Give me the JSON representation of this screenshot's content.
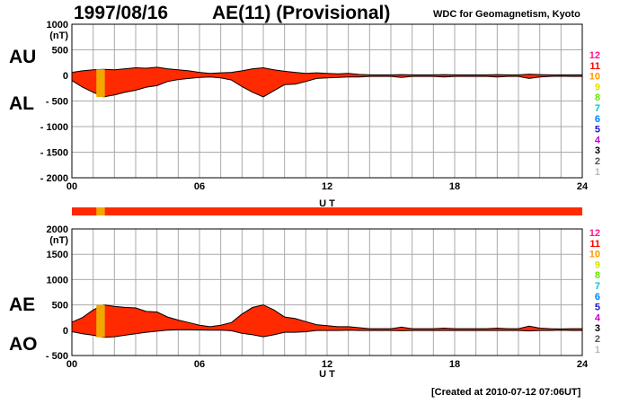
{
  "header": {
    "date": "1997/08/16",
    "title": "AE(11) (Provisional)",
    "organization": "WDC for Geomagnetism, Kyoto"
  },
  "footer": {
    "created": "[Created at 2010-07-12 07:06UT]"
  },
  "colors": {
    "trace_fill": "#ff2a00",
    "highlight_fill": "#f2a600",
    "outline": "#000000",
    "grid": "#aaaaaa"
  },
  "level_scale": {
    "labels": [
      "12",
      "11",
      "10",
      "9",
      "8",
      "7",
      "6",
      "5",
      "4",
      "3",
      "2",
      "1"
    ],
    "colors": [
      "#ff1493",
      "#ff0000",
      "#ff9900",
      "#d6e600",
      "#66e600",
      "#00c8c8",
      "#0080ff",
      "#1a1acc",
      "#cc00cc",
      "#000000",
      "#555555",
      "#bbbbbb"
    ]
  },
  "chart_data": [
    {
      "type": "area",
      "panel": "AU/AL",
      "series_labels": [
        "AU",
        "AL"
      ],
      "ylabel": "(nT)",
      "xlabel": "U T",
      "xlim": [
        0,
        24
      ],
      "ylim": [
        -2000,
        1000
      ],
      "xticks": [
        "00",
        "06",
        "12",
        "18",
        "24"
      ],
      "yticks": [
        "1000",
        "500",
        "0",
        "- 500",
        "- 1000",
        "- 1500",
        "- 2000"
      ],
      "ytick_values": [
        1000,
        500,
        0,
        -500,
        -1000,
        -1500,
        -2000
      ],
      "grid": true,
      "highlight_hours": [
        [
          1.15,
          1.55
        ]
      ],
      "x": [
        0,
        0.5,
        1,
        1.5,
        2,
        2.5,
        3,
        3.5,
        4,
        4.5,
        5,
        5.5,
        6,
        6.5,
        7,
        7.5,
        8,
        8.5,
        9,
        9.5,
        10,
        10.5,
        11,
        11.5,
        12,
        12.5,
        13,
        13.5,
        14,
        14.5,
        15,
        15.5,
        16,
        16.5,
        17,
        17.5,
        18,
        18.5,
        19,
        19.5,
        20,
        20.5,
        21,
        21.5,
        22,
        22.5,
        23,
        23.5,
        24
      ],
      "upper": [
        60,
        90,
        110,
        120,
        110,
        130,
        150,
        140,
        160,
        130,
        110,
        90,
        60,
        40,
        50,
        60,
        90,
        130,
        150,
        110,
        80,
        60,
        40,
        50,
        40,
        30,
        40,
        20,
        10,
        10,
        10,
        15,
        10,
        10,
        10,
        15,
        10,
        10,
        10,
        10,
        15,
        10,
        10,
        25,
        15,
        10,
        10,
        10,
        10
      ],
      "lower": [
        -100,
        -230,
        -330,
        -420,
        -380,
        -330,
        -290,
        -230,
        -200,
        -120,
        -80,
        -60,
        -40,
        -30,
        -50,
        -90,
        -220,
        -330,
        -420,
        -300,
        -180,
        -170,
        -120,
        -60,
        -50,
        -40,
        -30,
        -30,
        -20,
        -20,
        -20,
        -40,
        -20,
        -20,
        -20,
        -30,
        -20,
        -20,
        -20,
        -20,
        -30,
        -20,
        -20,
        -60,
        -30,
        -20,
        -15,
        -20,
        -20
      ]
    },
    {
      "type": "area",
      "panel": "AE/AO",
      "series_labels": [
        "AE",
        "AO"
      ],
      "ylabel": "(nT)",
      "xlabel": "U T",
      "xlim": [
        0,
        24
      ],
      "ylim": [
        -500,
        2000
      ],
      "xticks": [
        "00",
        "06",
        "12",
        "18",
        "24"
      ],
      "yticks": [
        "2000",
        "1500",
        "1000",
        "500",
        "0",
        "- 500"
      ],
      "ytick_values": [
        2000,
        1500,
        1000,
        500,
        0,
        -500
      ],
      "grid": true,
      "highlight_hours": [
        [
          1.15,
          1.55
        ]
      ],
      "x": [
        0,
        0.5,
        1,
        1.5,
        2,
        2.5,
        3,
        3.5,
        4,
        4.5,
        5,
        5.5,
        6,
        6.5,
        7,
        7.5,
        8,
        8.5,
        9,
        9.5,
        10,
        10.5,
        11,
        11.5,
        12,
        12.5,
        13,
        13.5,
        14,
        14.5,
        15,
        15.5,
        16,
        16.5,
        17,
        17.5,
        18,
        18.5,
        19,
        19.5,
        20,
        20.5,
        21,
        21.5,
        22,
        22.5,
        23,
        23.5,
        24
      ],
      "upper": [
        160,
        250,
        400,
        500,
        470,
        450,
        440,
        370,
        360,
        260,
        200,
        150,
        100,
        70,
        100,
        150,
        320,
        450,
        500,
        400,
        260,
        230,
        170,
        110,
        90,
        70,
        70,
        50,
        30,
        30,
        30,
        60,
        30,
        30,
        30,
        40,
        30,
        30,
        30,
        30,
        40,
        30,
        30,
        80,
        40,
        30,
        25,
        30,
        30
      ],
      "lower": [
        -30,
        -70,
        -100,
        -140,
        -130,
        -100,
        -70,
        -40,
        -20,
        0,
        10,
        10,
        5,
        0,
        0,
        -10,
        -60,
        -90,
        -130,
        -90,
        -40,
        -40,
        -30,
        -5,
        -5,
        -5,
        0,
        -5,
        -5,
        -5,
        -5,
        -10,
        -5,
        -5,
        -5,
        -5,
        -5,
        -5,
        -5,
        -5,
        -5,
        -5,
        -5,
        -15,
        -5,
        -5,
        0,
        -5,
        -5
      ]
    }
  ]
}
